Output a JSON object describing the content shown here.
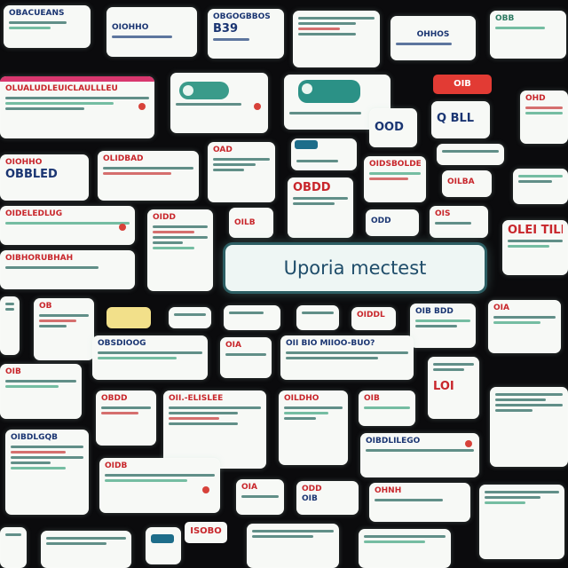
{
  "center": {
    "search_text": "Uporia mectest"
  },
  "cards": {
    "c01": [
      "OBACUEANS",
      "",
      ""
    ],
    "c02": [
      "OIOHHO",
      "",
      ""
    ],
    "c03": [
      "OBGOGBBOS",
      "B39",
      ""
    ],
    "c04": [
      "",
      "",
      ""
    ],
    "c05": [
      "OHHOS",
      "",
      ""
    ],
    "c06": [
      "OBB",
      "",
      ""
    ],
    "c07": [
      "OLUALUDLEUICLAULLLEU",
      "",
      ""
    ],
    "c08": [
      "",
      "",
      ""
    ],
    "c09": [
      "",
      "",
      ""
    ],
    "c10": [
      "OHD",
      "",
      ""
    ],
    "c11": [
      "OOD",
      "",
      ""
    ],
    "c12": [
      "Q BLL",
      "",
      ""
    ],
    "c13": [
      "OIOHHO",
      "",
      ""
    ],
    "c14": [
      "OBBLED",
      "",
      ""
    ],
    "c15": [
      "OLIDBAD",
      "",
      ""
    ],
    "c16": [
      "OAD",
      "",
      ""
    ],
    "c17": [
      "OIDSBOLDEB",
      "",
      ""
    ],
    "c18": [
      "OILBA",
      "",
      ""
    ],
    "c19": [
      "OIDELEDLUG",
      "",
      ""
    ],
    "c20": [
      "OIDD",
      "",
      ""
    ],
    "c21": [
      "OILB",
      "",
      ""
    ],
    "c22": [
      "OBDD",
      "",
      ""
    ],
    "c23": [
      "OLEI TILE",
      "",
      ""
    ],
    "c24": [
      "OIBHORUBHAH",
      "",
      ""
    ],
    "c25": [
      "OHNH",
      "",
      ""
    ],
    "c26": [
      "ODD",
      "",
      ""
    ],
    "c27": [
      "OIS",
      "",
      ""
    ],
    "c28": [
      "OB",
      "",
      ""
    ],
    "c29": [
      "OIDDL",
      "",
      ""
    ],
    "c30": [
      "OIB BDD",
      "",
      ""
    ],
    "c31": [
      "OII BIO MIIOO-BUO?",
      "",
      ""
    ],
    "c32": [
      "OBSDIOOG",
      "",
      ""
    ],
    "c33": [
      "OIA",
      "",
      ""
    ],
    "c34": [
      "OIA",
      "",
      ""
    ],
    "c35": [
      "OIB",
      "",
      ""
    ],
    "c36": [
      "OII.-ELISLEE",
      "",
      ""
    ],
    "c37": [
      "OBDD",
      "",
      ""
    ],
    "c38": [
      "OILDHO",
      "",
      ""
    ],
    "c39": [
      "LOI",
      "",
      ""
    ],
    "c40": [
      "OIBDLGQB",
      "",
      ""
    ],
    "c41": [
      "OIB",
      "",
      ""
    ],
    "c42": [
      "OIDB",
      "",
      ""
    ],
    "c43": [
      "OIBDLILEGO",
      "",
      ""
    ],
    "c44": [
      "OIA",
      "",
      ""
    ],
    "c45": [
      "ODD",
      "",
      ""
    ],
    "c46": [
      "OIB",
      "",
      ""
    ]
  },
  "pills": {
    "p1": "OIB",
    "p2": "ISOBO"
  }
}
